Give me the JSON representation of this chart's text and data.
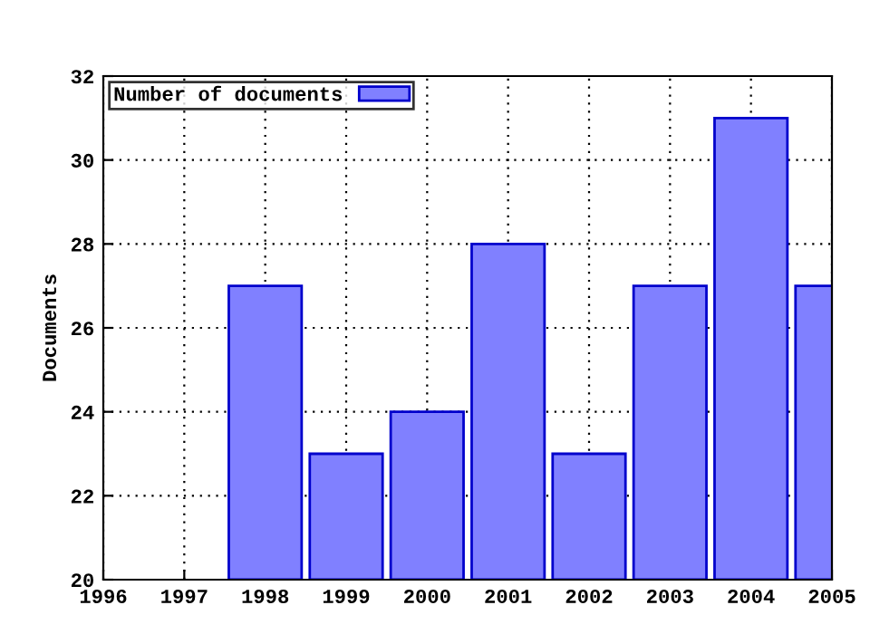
{
  "chart_data": {
    "type": "bar",
    "ylabel": "Documents",
    "x": [
      1998,
      1999,
      2000,
      2001,
      2002,
      2003,
      2004,
      2005
    ],
    "series": [
      {
        "name": "Number of documents",
        "color": "#8080ff",
        "values": [
          27,
          23,
          24,
          28,
          23,
          27,
          31,
          27
        ]
      }
    ],
    "xlim": [
      1996,
      2005
    ],
    "xticks": [
      1996,
      1997,
      1998,
      1999,
      2000,
      2001,
      2002,
      2003,
      2004,
      2005
    ],
    "ylim": [
      20,
      32
    ],
    "yticks": [
      20,
      22,
      24,
      26,
      28,
      30,
      32
    ],
    "grid": true,
    "legend": "top left"
  }
}
